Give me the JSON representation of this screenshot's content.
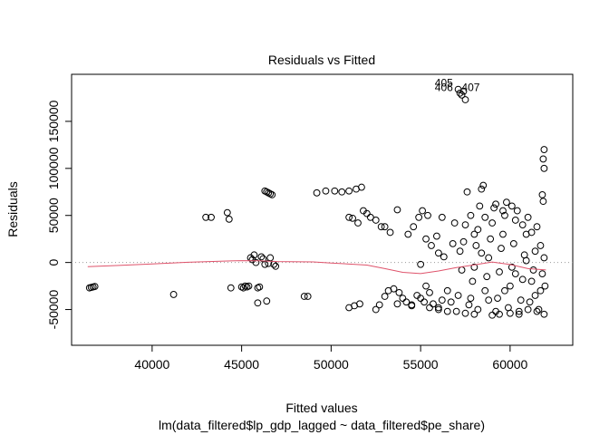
{
  "chart_data": {
    "type": "scatter",
    "title": "Residuals vs Fitted",
    "xlabel": "Fitted values",
    "subtitle": "lm(data_filtered$lp_gdp_lagged ~ data_filtered$pe_share)",
    "ylabel": "Residuals",
    "xlim": [
      35500,
      63500
    ],
    "ylim": [
      -88000,
      200000
    ],
    "x_ticks": [
      {
        "value": 40000,
        "label": "40000"
      },
      {
        "value": 45000,
        "label": "45000"
      },
      {
        "value": 50000,
        "label": "50000"
      },
      {
        "value": 55000,
        "label": "55000"
      },
      {
        "value": 60000,
        "label": "60000"
      }
    ],
    "y_ticks": [
      {
        "value": -50000,
        "label": "-50000"
      },
      {
        "value": 0,
        "label": "0"
      },
      {
        "value": 50000,
        "label": "50000"
      },
      {
        "value": 100000,
        "label": "100000"
      },
      {
        "value": 150000,
        "label": "150000"
      }
    ],
    "zero_line": {
      "y": 0,
      "style": "dotted",
      "color": "#9a9a9a"
    },
    "smooth_color": "#df536b",
    "smoother": {
      "x": [
        36400,
        38000,
        40000,
        42000,
        44000,
        45000,
        46000,
        47000,
        49000,
        50000,
        52000,
        53000,
        54000,
        55000,
        56000,
        57000,
        58000,
        59000,
        60000,
        61000,
        62000
      ],
      "y": [
        -4500,
        -3200,
        -1500,
        200,
        1500,
        2000,
        1800,
        1000,
        600,
        -500,
        -2800,
        -6500,
        -10500,
        -11800,
        -9000,
        -5500,
        -2500,
        500,
        -2200,
        -6500,
        -8000
      ]
    },
    "outlier_labels": [
      {
        "label": "405",
        "x": 56300,
        "y": 187000
      },
      {
        "label": "406",
        "x": 56300,
        "y": 182000
      },
      {
        "label": "407",
        "x": 57800,
        "y": 182000
      }
    ],
    "points": [
      [
        36500,
        -27000
      ],
      [
        36600,
        -26500
      ],
      [
        36700,
        -26000
      ],
      [
        36800,
        -25500
      ],
      [
        41200,
        -34000
      ],
      [
        43000,
        48000
      ],
      [
        43300,
        48000
      ],
      [
        44200,
        53000
      ],
      [
        44300,
        46000
      ],
      [
        44400,
        -27000
      ],
      [
        45000,
        -26000
      ],
      [
        45100,
        -27000
      ],
      [
        45200,
        -25000
      ],
      [
        45300,
        -26000
      ],
      [
        45400,
        -25000
      ],
      [
        45500,
        5000
      ],
      [
        45600,
        3000
      ],
      [
        45700,
        8000
      ],
      [
        45800,
        0
      ],
      [
        45900,
        -27000
      ],
      [
        46000,
        -26000
      ],
      [
        45900,
        -43000
      ],
      [
        46100,
        6000
      ],
      [
        46200,
        4000
      ],
      [
        46300,
        -2000
      ],
      [
        46400,
        -41000
      ],
      [
        46300,
        76000
      ],
      [
        46400,
        75000
      ],
      [
        46500,
        74000
      ],
      [
        46600,
        73000
      ],
      [
        46700,
        72000
      ],
      [
        46500,
        -1000
      ],
      [
        46600,
        5000
      ],
      [
        46800,
        -2000
      ],
      [
        46900,
        -4000
      ],
      [
        48500,
        -36000
      ],
      [
        48700,
        -36000
      ],
      [
        49200,
        74000
      ],
      [
        49700,
        76000
      ],
      [
        50200,
        76000
      ],
      [
        50600,
        75000
      ],
      [
        51000,
        76000
      ],
      [
        51400,
        78000
      ],
      [
        51700,
        80000
      ],
      [
        51000,
        48000
      ],
      [
        51200,
        47000
      ],
      [
        51500,
        42000
      ],
      [
        51800,
        55000
      ],
      [
        52000,
        52000
      ],
      [
        51000,
        -48000
      ],
      [
        51300,
        -46000
      ],
      [
        51600,
        -44000
      ],
      [
        52200,
        48000
      ],
      [
        52500,
        45000
      ],
      [
        52800,
        38000
      ],
      [
        53000,
        38000
      ],
      [
        53300,
        32000
      ],
      [
        53700,
        56000
      ],
      [
        52500,
        -50000
      ],
      [
        52700,
        -45000
      ],
      [
        53000,
        -36000
      ],
      [
        53200,
        -30000
      ],
      [
        53500,
        -28000
      ],
      [
        53800,
        -32000
      ],
      [
        54000,
        -38000
      ],
      [
        54200,
        -42000
      ],
      [
        54500,
        -45000
      ],
      [
        54800,
        -35000
      ],
      [
        55000,
        -38000
      ],
      [
        55200,
        -42000
      ],
      [
        54300,
        30000
      ],
      [
        54600,
        38000
      ],
      [
        54900,
        48000
      ],
      [
        55100,
        55000
      ],
      [
        55400,
        50000
      ],
      [
        55300,
        25000
      ],
      [
        55600,
        18000
      ],
      [
        55900,
        28000
      ],
      [
        55000,
        -2000
      ],
      [
        55300,
        -25000
      ],
      [
        55500,
        -32000
      ],
      [
        55700,
        -44000
      ],
      [
        56000,
        -48000
      ],
      [
        56200,
        -40000
      ],
      [
        56000,
        10000
      ],
      [
        56300,
        6000
      ],
      [
        56200,
        48000
      ],
      [
        56500,
        -30000
      ],
      [
        56700,
        -42000
      ],
      [
        56800,
        20000
      ],
      [
        56900,
        42000
      ],
      [
        57000,
        -52000
      ],
      [
        57100,
        -35000
      ],
      [
        57200,
        12000
      ],
      [
        57300,
        -8000
      ],
      [
        57400,
        22000
      ],
      [
        57500,
        40000
      ],
      [
        57600,
        75000
      ],
      [
        57100,
        184000
      ],
      [
        57200,
        180000
      ],
      [
        57300,
        178000
      ],
      [
        57400,
        182000
      ],
      [
        57500,
        173000
      ],
      [
        57700,
        -45000
      ],
      [
        57800,
        -38000
      ],
      [
        57900,
        -20000
      ],
      [
        58000,
        -5000
      ],
      [
        58100,
        18000
      ],
      [
        58200,
        35000
      ],
      [
        58300,
        60000
      ],
      [
        58400,
        78000
      ],
      [
        58500,
        82000
      ],
      [
        58200,
        -50000
      ],
      [
        58600,
        -30000
      ],
      [
        58700,
        -15000
      ],
      [
        58800,
        5000
      ],
      [
        58900,
        25000
      ],
      [
        59000,
        42000
      ],
      [
        59100,
        58000
      ],
      [
        59200,
        -52000
      ],
      [
        59300,
        -38000
      ],
      [
        59400,
        -10000
      ],
      [
        59500,
        15000
      ],
      [
        59600,
        30000
      ],
      [
        59700,
        50000
      ],
      [
        59800,
        64000
      ],
      [
        59900,
        -48000
      ],
      [
        60000,
        -25000
      ],
      [
        60100,
        -5000
      ],
      [
        60200,
        20000
      ],
      [
        60300,
        45000
      ],
      [
        60400,
        55000
      ],
      [
        60500,
        -55000
      ],
      [
        60600,
        -40000
      ],
      [
        60700,
        -18000
      ],
      [
        60800,
        8000
      ],
      [
        60900,
        30000
      ],
      [
        61000,
        48000
      ],
      [
        61100,
        -42000
      ],
      [
        61200,
        -20000
      ],
      [
        61300,
        -8000
      ],
      [
        61400,
        12000
      ],
      [
        61500,
        38000
      ],
      [
        61600,
        -50000
      ],
      [
        61700,
        -30000
      ],
      [
        61800,
        -12000
      ],
      [
        61900,
        5000
      ],
      [
        61950,
        -25000
      ],
      [
        61900,
        120000
      ],
      [
        61850,
        110000
      ],
      [
        61900,
        100000
      ],
      [
        61800,
        72000
      ],
      [
        61850,
        65000
      ],
      [
        59000,
        -56000
      ],
      [
        59400,
        -55000
      ],
      [
        60000,
        -54000
      ],
      [
        60500,
        -52000
      ],
      [
        61000,
        -50000
      ],
      [
        61500,
        -52000
      ],
      [
        61900,
        -55000
      ],
      [
        58000,
        -55000
      ],
      [
        57500,
        -54000
      ],
      [
        56500,
        -52000
      ],
      [
        56000,
        -50000
      ],
      [
        55500,
        -48000
      ],
      [
        54500,
        -46000
      ],
      [
        53700,
        -44000
      ],
      [
        58600,
        48000
      ],
      [
        59200,
        62000
      ],
      [
        59600,
        55000
      ],
      [
        60100,
        60000
      ],
      [
        60700,
        40000
      ],
      [
        61200,
        32000
      ],
      [
        61700,
        18000
      ],
      [
        57800,
        50000
      ],
      [
        58000,
        30000
      ],
      [
        58400,
        10000
      ],
      [
        58800,
        -40000
      ],
      [
        59700,
        -30000
      ],
      [
        60300,
        -12000
      ],
      [
        60900,
        2000
      ],
      [
        61400,
        -35000
      ]
    ]
  }
}
